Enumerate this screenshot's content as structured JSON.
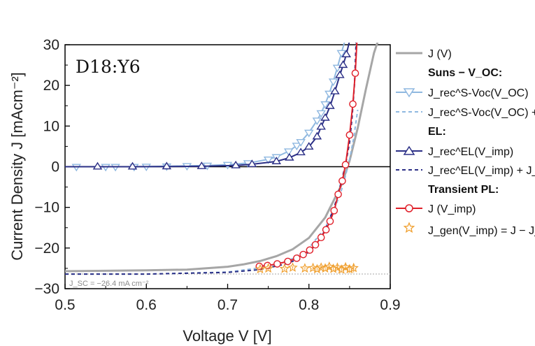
{
  "chart_data": {
    "type": "line",
    "annotation": "D18:Y6",
    "xlabel": "Voltage V [V]",
    "ylabel": "Current Density J [mAcm⁻²]",
    "xlim": [
      0.5,
      0.9
    ],
    "ylim": [
      -30,
      30
    ],
    "xticks": [
      "0.5",
      "0.6",
      "0.7",
      "0.8",
      "0.9"
    ],
    "yticks": [
      "-30",
      "-20",
      "-10",
      "0",
      "10",
      "20",
      "30"
    ],
    "jsc_label": "J_SC = −26.4 mA cm⁻²",
    "jsc_value": -26.4,
    "legend": {
      "j_v": "J (V)",
      "suns_header": "Suns − V_OC:",
      "suns_rec": "J_rec^S-Voc(V_OC)",
      "suns_rec_plus": "J_rec^S-Voc(V_OC) + J_SC",
      "el_header": "EL:",
      "el_rec": "J_rec^EL(V_imp)",
      "el_rec_plus": "J_rec^EL(V_imp) + J_SC",
      "tpl_header": "Transient PL:",
      "tpl_j": "J (V_imp)",
      "tpl_gen": "J_gen(V_imp) = J − J_rec^EL"
    },
    "colors": {
      "jv": "#a6a6a6",
      "suns": "#8fb8e0",
      "el": "#2b2f86",
      "tpl": "#e0202a",
      "gen": "#f0a030"
    },
    "series": [
      {
        "name": "J (V)",
        "kind": "line",
        "x": [
          0.5,
          0.55,
          0.6,
          0.65,
          0.7,
          0.72,
          0.74,
          0.76,
          0.78,
          0.8,
          0.82,
          0.84,
          0.85,
          0.86,
          0.87,
          0.88,
          0.885
        ],
        "y": [
          -25.7,
          -25.6,
          -25.5,
          -25.3,
          -24.6,
          -24.0,
          -23.2,
          -22.0,
          -20.3,
          -17.5,
          -12.5,
          -4.5,
          1.5,
          9.5,
          19.0,
          28.0,
          31.0
        ]
      },
      {
        "name": "Suns-Voc Jrec",
        "kind": "markers-line",
        "x": [
          0.514,
          0.55,
          0.562,
          0.585,
          0.6,
          0.625,
          0.65,
          0.675,
          0.7,
          0.725,
          0.75,
          0.76,
          0.775,
          0.785,
          0.79,
          0.8,
          0.81,
          0.815,
          0.82,
          0.825,
          0.83,
          0.835,
          0.84,
          0.845,
          0.85
        ],
        "y": [
          0.0,
          0.0,
          0.0,
          0.0,
          0.05,
          0.1,
          0.2,
          0.3,
          0.5,
          0.9,
          1.8,
          2.4,
          3.8,
          5.2,
          6.1,
          8.4,
          11.4,
          13.2,
          15.4,
          18.0,
          21.0,
          24.4,
          28.0,
          31.5,
          35.0
        ]
      },
      {
        "name": "Suns-Voc Jrec + Jsc",
        "kind": "dashed",
        "x": [
          0.5,
          0.6,
          0.7,
          0.75,
          0.78,
          0.8,
          0.82,
          0.83,
          0.84,
          0.845,
          0.85,
          0.855,
          0.86
        ],
        "y": [
          -26.4,
          -26.4,
          -25.9,
          -24.6,
          -22.6,
          -20.0,
          -15.0,
          -11.2,
          -5.8,
          -2.2,
          1.8,
          7.0,
          14.0
        ]
      },
      {
        "name": "EL Jrec",
        "kind": "markers-line",
        "x": [
          0.5,
          0.54,
          0.583,
          0.625,
          0.668,
          0.71,
          0.73,
          0.76,
          0.776,
          0.79,
          0.8,
          0.81,
          0.815,
          0.82,
          0.826,
          0.832,
          0.838,
          0.842,
          0.846,
          0.85
        ],
        "y": [
          0.0,
          0.0,
          0.0,
          0.05,
          0.1,
          0.3,
          0.6,
          1.3,
          2.2,
          3.5,
          4.9,
          7.4,
          9.8,
          12.0,
          14.9,
          18.5,
          22.5,
          25.0,
          27.6,
          31.0
        ]
      },
      {
        "name": "EL Jrec + Jsc",
        "kind": "dashed",
        "x": [
          0.5,
          0.6,
          0.7,
          0.74,
          0.77,
          0.79,
          0.8,
          0.81,
          0.82,
          0.83,
          0.835,
          0.84,
          0.845,
          0.85,
          0.853,
          0.856,
          0.858
        ],
        "y": [
          -26.4,
          -26.4,
          -26.0,
          -25.3,
          -24.0,
          -22.5,
          -21.0,
          -18.8,
          -15.6,
          -10.5,
          -7.5,
          -3.5,
          0.5,
          6.0,
          12.0,
          20.0,
          31.0
        ]
      },
      {
        "name": "TPL J(Vimp)",
        "kind": "markers-line",
        "x": [
          0.739,
          0.749,
          0.761,
          0.774,
          0.785,
          0.793,
          0.801,
          0.808,
          0.815,
          0.821,
          0.826,
          0.831,
          0.836,
          0.841,
          0.845,
          0.85,
          0.854,
          0.857,
          0.859
        ],
        "y": [
          -24.5,
          -24.3,
          -23.9,
          -23.3,
          -22.5,
          -21.6,
          -20.5,
          -19.2,
          -17.4,
          -15.5,
          -13.4,
          -10.8,
          -6.8,
          -3.5,
          0.5,
          7.8,
          15.4,
          23.0,
          30.5
        ]
      },
      {
        "name": "Jgen",
        "kind": "stars",
        "x": [
          0.74,
          0.75,
          0.77,
          0.78,
          0.795,
          0.805,
          0.81,
          0.815,
          0.82,
          0.825,
          0.83,
          0.835,
          0.84,
          0.845,
          0.85,
          0.855
        ],
        "y": [
          -25.2,
          -25.0,
          -25.1,
          -24.8,
          -25.0,
          -24.9,
          -25.2,
          -24.8,
          -25.0,
          -24.6,
          -25.1,
          -24.8,
          -25.3,
          -24.7,
          -25.2,
          -24.9
        ],
        "yerr": [
          0.3,
          0.3,
          0.3,
          0.3,
          0.3,
          0.3,
          0.3,
          0.4,
          0.4,
          0.4,
          0.5,
          0.6,
          0.7,
          0.8,
          1.0,
          1.1
        ]
      }
    ]
  }
}
